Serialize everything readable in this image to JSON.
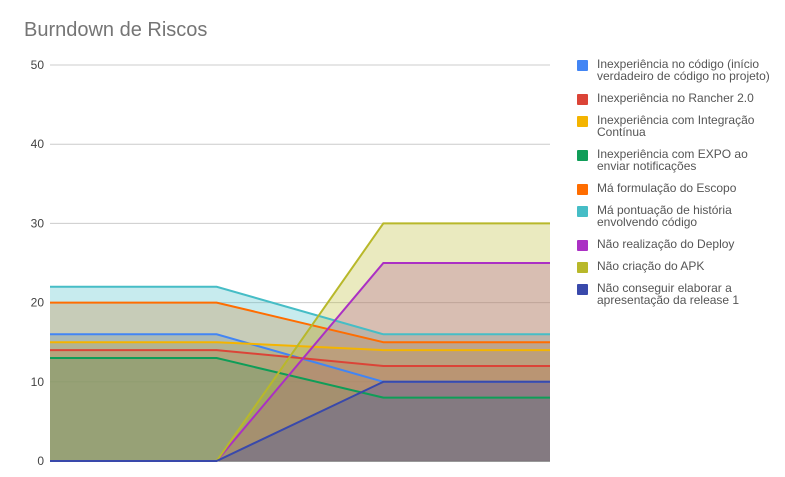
{
  "chart_data": {
    "type": "area",
    "title": "Burndown de Riscos",
    "xlabel": "",
    "ylabel": "",
    "ylim": [
      0,
      50
    ],
    "yticks": [
      "0",
      "10",
      "20",
      "30",
      "40",
      "50"
    ],
    "grid": true,
    "legend_position": "right",
    "x_count": 4,
    "series": [
      {
        "name": "Inexperiência no código (início verdadeiro de código no projeto)",
        "color": "#4285f4",
        "values": [
          16,
          16,
          10,
          10
        ]
      },
      {
        "name": "Inexperiência no Rancher 2.0",
        "color": "#db4437",
        "values": [
          14,
          14,
          12,
          12
        ]
      },
      {
        "name": "Inexperiência com Integração Contínua",
        "color": "#f4b400",
        "values": [
          15,
          15,
          14,
          14
        ]
      },
      {
        "name": "Inexperiência com EXPO ao enviar notificações",
        "color": "#0f9d58",
        "values": [
          13,
          13,
          8,
          8
        ]
      },
      {
        "name": "Má formulação do Escopo",
        "color": "#ff6d00",
        "values": [
          20,
          20,
          15,
          15
        ]
      },
      {
        "name": "Má pontuação de história envolvendo código",
        "color": "#46bdc6",
        "values": [
          22,
          22,
          16,
          16
        ]
      },
      {
        "name": "Não realização do Deploy",
        "color": "#ab30c4",
        "values": [
          0,
          0,
          25,
          25
        ]
      },
      {
        "name": "Não criação do APK",
        "color": "#b8b82a",
        "values": [
          0,
          0,
          30,
          30
        ]
      },
      {
        "name": "Não conseguir elaborar a apresentação da release 1",
        "color": "#3949ab",
        "values": [
          0,
          0,
          10,
          10
        ]
      }
    ]
  }
}
